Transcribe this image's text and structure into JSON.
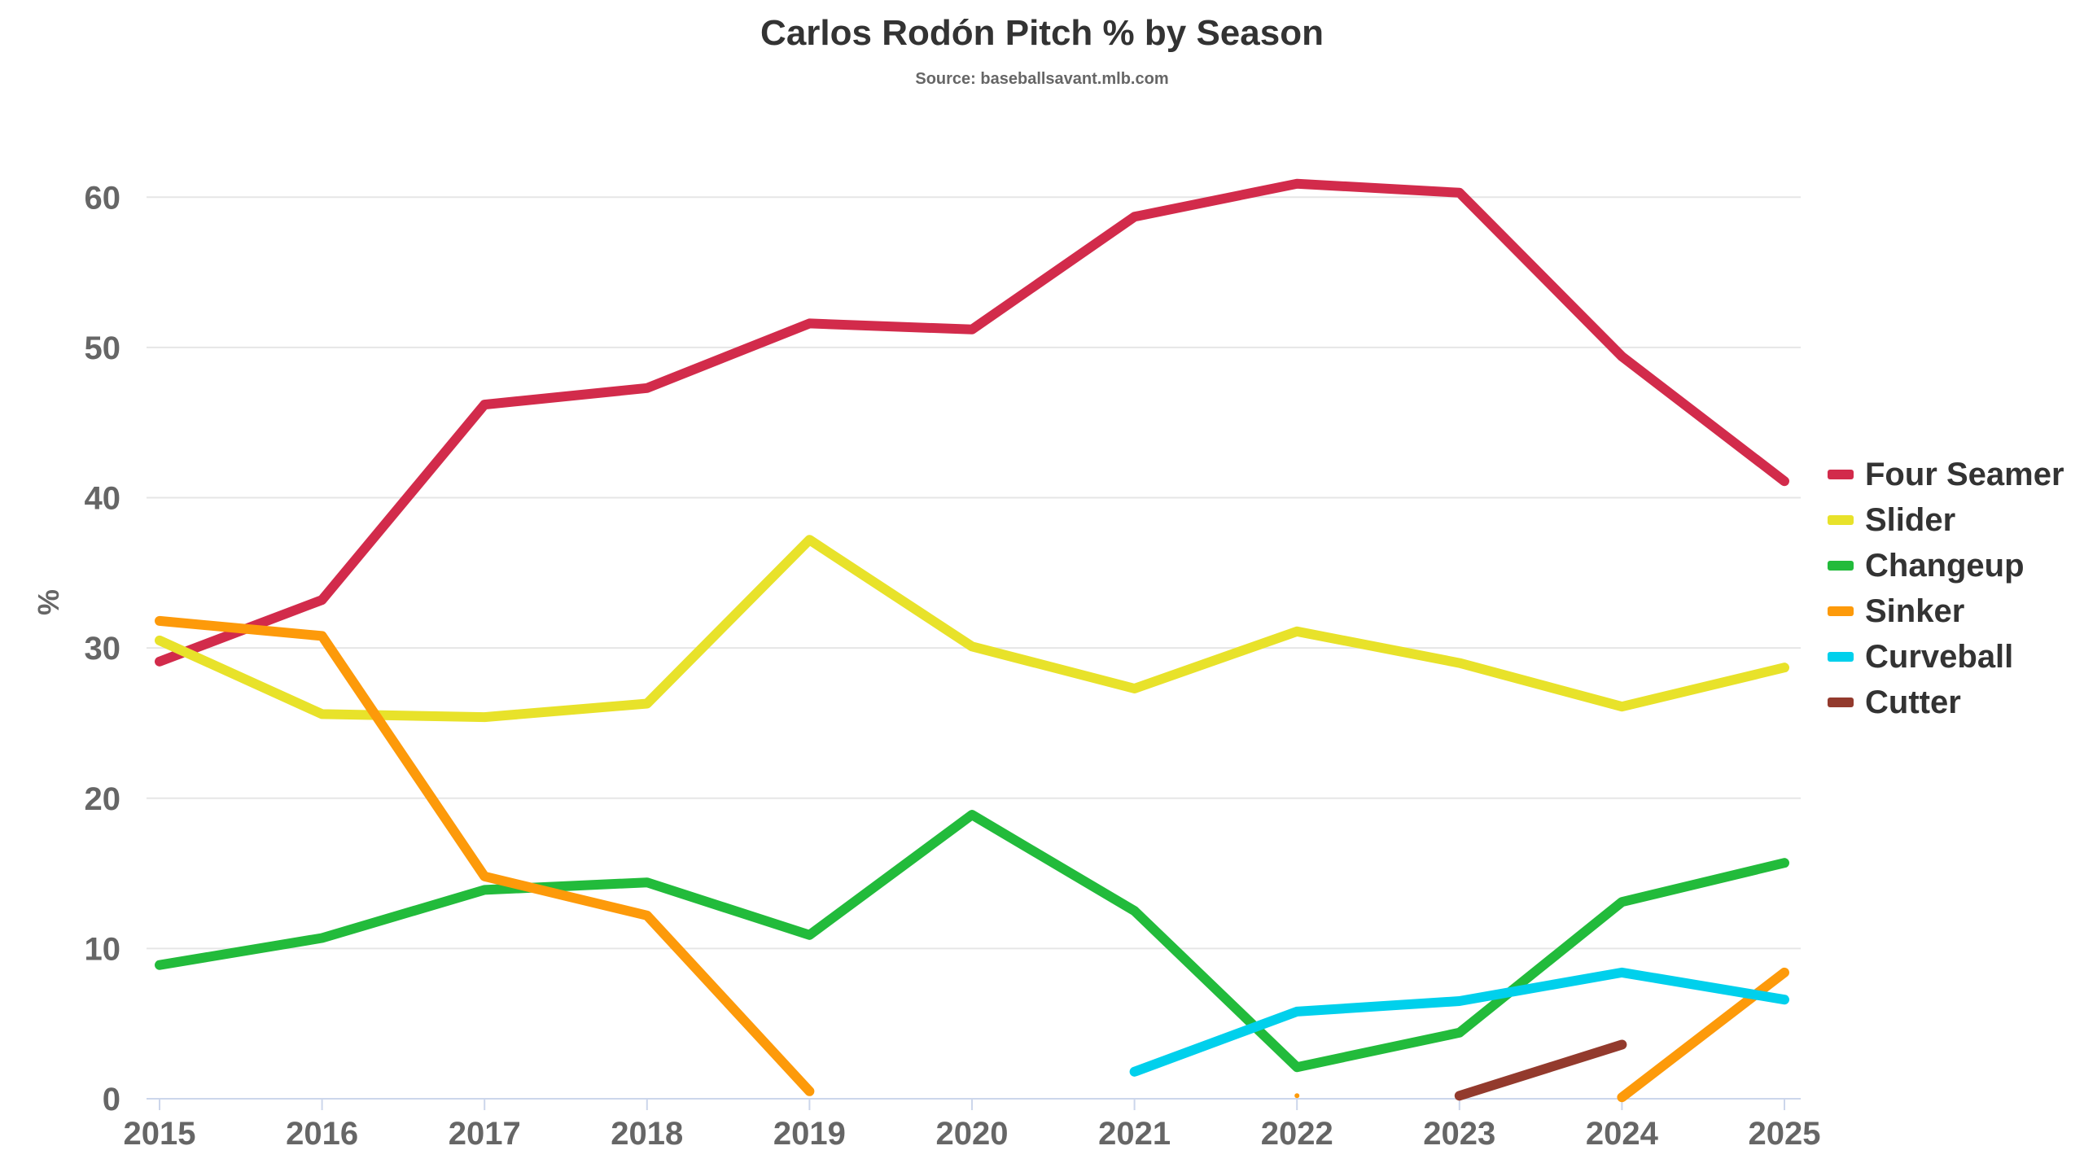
{
  "chart_data": {
    "type": "line",
    "title": "Carlos Rodón Pitch % by Season",
    "subtitle": "Source: baseballsavant.mlb.com",
    "xlabel": "",
    "ylabel": "%",
    "categories": [
      "2015",
      "2016",
      "2017",
      "2018",
      "2019",
      "2020",
      "2021",
      "2022",
      "2023",
      "2024",
      "2025"
    ],
    "ylim": [
      0,
      65
    ],
    "yticks": [
      0,
      10,
      20,
      30,
      40,
      50,
      60
    ],
    "grid": true,
    "legend_position": "right",
    "series": [
      {
        "name": "Four Seamer",
        "color": "#d22b4b",
        "values": [
          29.1,
          33.2,
          46.2,
          47.3,
          51.6,
          51.2,
          58.7,
          60.9,
          60.3,
          49.4,
          41.1
        ]
      },
      {
        "name": "Slider",
        "color": "#e8e22a",
        "values": [
          30.5,
          25.6,
          25.4,
          26.3,
          37.2,
          30.1,
          27.3,
          31.1,
          29.0,
          26.1,
          28.7
        ]
      },
      {
        "name": "Changeup",
        "color": "#22bb3b",
        "values": [
          8.9,
          10.7,
          13.9,
          14.4,
          10.9,
          18.9,
          12.5,
          2.1,
          4.4,
          13.1,
          15.7
        ]
      },
      {
        "name": "Sinker",
        "color": "#fd9a0a",
        "values": [
          31.8,
          30.8,
          14.8,
          12.2,
          0.5,
          null,
          null,
          0.2,
          null,
          0.1,
          8.4
        ]
      },
      {
        "name": "Curveball",
        "color": "#00d0ec",
        "values": [
          null,
          null,
          null,
          null,
          null,
          null,
          1.8,
          5.8,
          6.5,
          8.4,
          6.6
        ]
      },
      {
        "name": "Cutter",
        "color": "#933a2d",
        "values": [
          null,
          null,
          null,
          null,
          null,
          null,
          null,
          null,
          0.2,
          3.6,
          null
        ]
      }
    ]
  }
}
